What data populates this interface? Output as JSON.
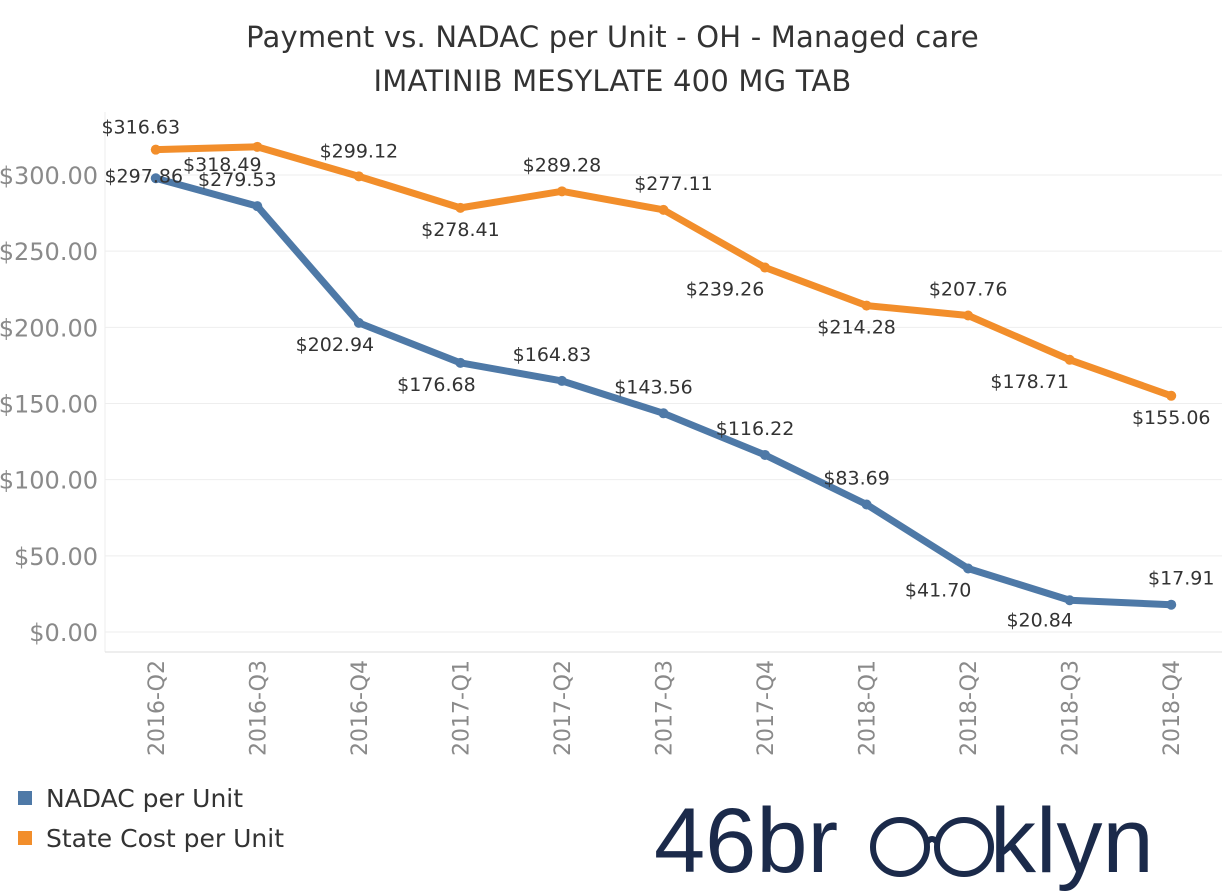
{
  "title": "Payment vs. NADAC per Unit - OH - Managed care",
  "subtitle": "IMATINIB MESYLATE 400 MG TAB",
  "colors": {
    "nadac": "#4e79a7",
    "state": "#f28e2b",
    "grid": "#eeeeee",
    "axis_text": "#8a8a8a",
    "label_text": "#333333",
    "brand": "#1b2a4a"
  },
  "legend": [
    {
      "name": "NADAC per Unit",
      "color": "#4e79a7"
    },
    {
      "name": "State Cost per Unit",
      "color": "#f28e2b"
    }
  ],
  "brand": {
    "logo_part1": "46br",
    "logo_part2": "klyn",
    "logo_icon": "glasses-icon"
  },
  "chart_data": {
    "type": "line",
    "categories": [
      "2016-Q2",
      "2016-Q3",
      "2016-Q4",
      "2017-Q1",
      "2017-Q2",
      "2017-Q3",
      "2017-Q4",
      "2018-Q1",
      "2018-Q2",
      "2018-Q3",
      "2018-Q4"
    ],
    "series": [
      {
        "name": "NADAC per Unit",
        "values": [
          297.86,
          279.53,
          202.94,
          176.68,
          164.83,
          143.56,
          116.22,
          83.69,
          41.7,
          20.84,
          17.91
        ],
        "labels": [
          "$297.86",
          "$279.53",
          "$202.94",
          "$176.68",
          "$164.83",
          "$143.56",
          "$116.22",
          "$83.69",
          "$41.70",
          "$20.84",
          "$17.91"
        ]
      },
      {
        "name": "State Cost per Unit",
        "values": [
          316.63,
          318.49,
          299.12,
          278.41,
          289.28,
          277.11,
          239.26,
          214.28,
          207.76,
          178.71,
          155.06
        ],
        "labels": [
          "$316.63",
          "$318.49",
          "$299.12",
          "$278.41",
          "$289.28",
          "$277.11",
          "$239.26",
          "$214.28",
          "$207.76",
          "$178.71",
          "$155.06"
        ]
      }
    ],
    "y_ticks": [
      0,
      50,
      100,
      150,
      200,
      250,
      300
    ],
    "y_tick_labels": [
      "$0.00",
      "$50.00",
      "$100.00",
      "$150.00",
      "$200.00",
      "$250.00",
      "$300.00"
    ],
    "ylim": [
      -10,
      335
    ],
    "grid": true,
    "legend_position": "bottom-left"
  }
}
